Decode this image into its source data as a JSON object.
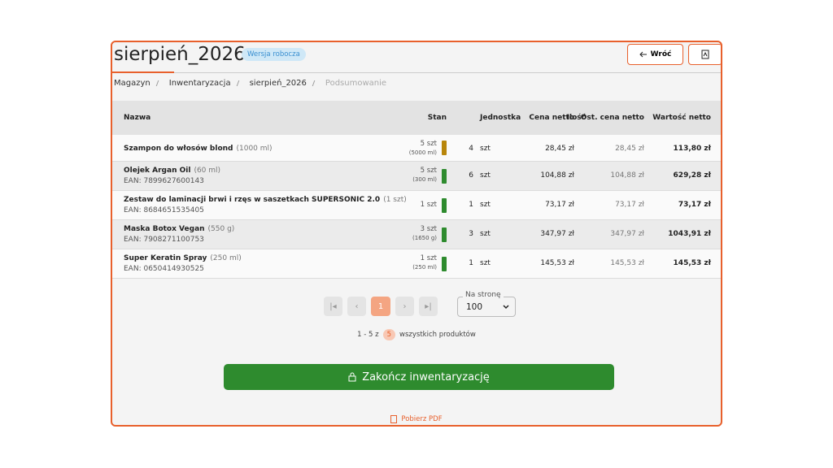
{
  "header": {
    "title": "sierpień_2026",
    "badge": "Wersja robocza",
    "back": "Wróć"
  },
  "breadcrumb": [
    "Magazyn",
    "Inwentaryzacja",
    "sierpień_2026",
    "Podsumowanie"
  ],
  "table": {
    "columns": [
      "Nazwa",
      "Stan",
      "Ilość",
      "Jednostka",
      "Cena netto",
      "Ost. cena netto",
      "Wartość netto"
    ],
    "rows": [
      {
        "name": "Szampon do włosów blond",
        "detail": "(1000 ml)",
        "stock": "5 szt",
        "stock_detail": "(5000 ml)",
        "status_color": "#b8860b",
        "qty": 4,
        "unit": "szt",
        "price": "28,45 zł",
        "last_price": "28,45 zł",
        "value": "113,80 zł"
      },
      {
        "name": "Olejek Argan Oil",
        "detail": "(60 ml)",
        "ean": "EAN: 7899627600143",
        "stock": "5 szt",
        "stock_detail": "(300 ml)",
        "status_color": "#2e8b2e",
        "qty": 6,
        "unit": "szt",
        "price": "104,88 zł",
        "last_price": "104,88 zł",
        "value": "629,28 zł"
      },
      {
        "name": "Zestaw do laminacji brwi i rzęs w saszetkach SUPERSONIC 2.0",
        "detail": "(1 szt)",
        "ean": "EAN: 8684651535405",
        "stock": "1 szt",
        "status_color": "#2e8b2e",
        "qty": 1,
        "unit": "szt",
        "price": "73,17 zł",
        "last_price": "73,17 zł",
        "value": "73,17 zł"
      },
      {
        "name": "Maska Botox Vegan",
        "detail": "(550 g)",
        "ean": "EAN: 7908271100753",
        "stock": "3 szt",
        "stock_detail": "(1650 g)",
        "status_color": "#2e8b2e",
        "qty": 3,
        "unit": "szt",
        "price": "347,97 zł",
        "last_price": "347,97 zł",
        "value": "1043,91 zł"
      },
      {
        "name": "Super Keratin Spray",
        "detail": "(250 ml)",
        "ean": "EAN: 0650414930525",
        "stock": "1 szt",
        "stock_detail": "(250 ml)",
        "status_color": "#2e8b2e",
        "qty": 1,
        "unit": "szt",
        "price": "145,53 zł",
        "last_price": "145,53 zł",
        "value": "145,53 zł"
      }
    ]
  },
  "pagination": {
    "current": "1",
    "per_page_label": "Na stronę",
    "per_page": "100",
    "summary_prefix": "1 - 5 z",
    "total": "5",
    "summary_suffix": "wszystkich produktów"
  },
  "finish_button": "Zakończ inwentaryzację",
  "pdf_link": "Pobierz PDF"
}
